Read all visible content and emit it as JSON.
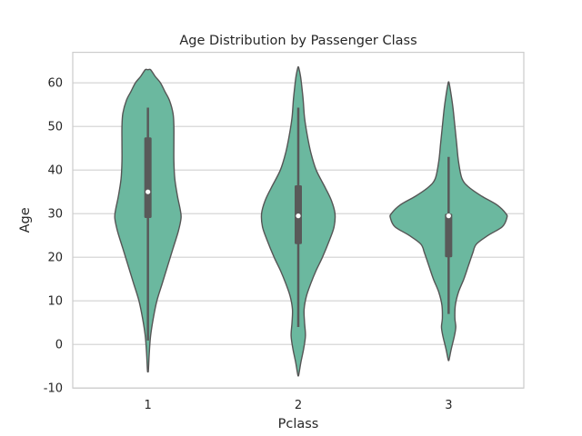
{
  "chart_data": {
    "type": "violin",
    "title": "Age Distribution by Passenger Class",
    "xlabel": "Pclass",
    "ylabel": "Age",
    "categories": [
      "1",
      "2",
      "3"
    ],
    "ylim": [
      -10,
      67
    ],
    "yticks": [
      -10,
      0,
      10,
      20,
      30,
      40,
      50,
      60
    ],
    "grid": "horizontal",
    "fill_color": "#6bb89f",
    "edge_color": "#555555",
    "box_color": "#595959",
    "grid_color": "#d0d0d0",
    "violins": [
      {
        "category": "1",
        "min": -6,
        "max": 63,
        "whisker_low": 0.9,
        "whisker_high": 54.3,
        "q1": 29,
        "median": 35,
        "q3": 47.5,
        "profile": [
          [
            -6,
            0.5
          ],
          [
            -2,
            1.5
          ],
          [
            2,
            3
          ],
          [
            6,
            6
          ],
          [
            10,
            10
          ],
          [
            14,
            16
          ],
          [
            18,
            22
          ],
          [
            22,
            28
          ],
          [
            26,
            34
          ],
          [
            29,
            37
          ],
          [
            31,
            36
          ],
          [
            34,
            33
          ],
          [
            38,
            30
          ],
          [
            42,
            29
          ],
          [
            46,
            29
          ],
          [
            50,
            29
          ],
          [
            53,
            28
          ],
          [
            56,
            24
          ],
          [
            58,
            19
          ],
          [
            60,
            14
          ],
          [
            61.5,
            8
          ],
          [
            63,
            3
          ]
        ]
      },
      {
        "category": "2",
        "min": -7,
        "max": 63.5,
        "whisker_low": 4,
        "whisker_high": 54.3,
        "q1": 23,
        "median": 29.5,
        "q3": 36.5,
        "profile": [
          [
            -7,
            0.5
          ],
          [
            -4,
            3
          ],
          [
            -1,
            6
          ],
          [
            2,
            8
          ],
          [
            5,
            7
          ],
          [
            8,
            6.5
          ],
          [
            11,
            9
          ],
          [
            14,
            14
          ],
          [
            17,
            20
          ],
          [
            20,
            27
          ],
          [
            24,
            35
          ],
          [
            27,
            40
          ],
          [
            30,
            41
          ],
          [
            33,
            37
          ],
          [
            36,
            30
          ],
          [
            40,
            20
          ],
          [
            44,
            14
          ],
          [
            48,
            10
          ],
          [
            52,
            7
          ],
          [
            56,
            5.5
          ],
          [
            59,
            4
          ],
          [
            61.5,
            2.5
          ],
          [
            63.5,
            0.5
          ]
        ]
      },
      {
        "category": "3",
        "min": -3.5,
        "max": 60,
        "whisker_low": 7,
        "whisker_high": 43,
        "q1": 20,
        "median": 29.5,
        "q3": 30,
        "profile": [
          [
            -3.5,
            0.5
          ],
          [
            -1,
            3
          ],
          [
            2,
            6.5
          ],
          [
            4,
            8
          ],
          [
            6,
            7
          ],
          [
            9,
            7.5
          ],
          [
            12,
            11
          ],
          [
            15,
            17
          ],
          [
            18,
            22
          ],
          [
            21,
            27
          ],
          [
            23,
            31
          ],
          [
            25,
            44
          ],
          [
            27,
            60
          ],
          [
            29,
            65
          ],
          [
            30,
            64
          ],
          [
            32,
            54
          ],
          [
            34,
            37
          ],
          [
            36,
            23
          ],
          [
            38,
            15
          ],
          [
            42,
            11
          ],
          [
            46,
            9
          ],
          [
            50,
            7
          ],
          [
            54,
            5
          ],
          [
            57,
            3
          ],
          [
            60,
            0.5
          ]
        ]
      }
    ]
  }
}
